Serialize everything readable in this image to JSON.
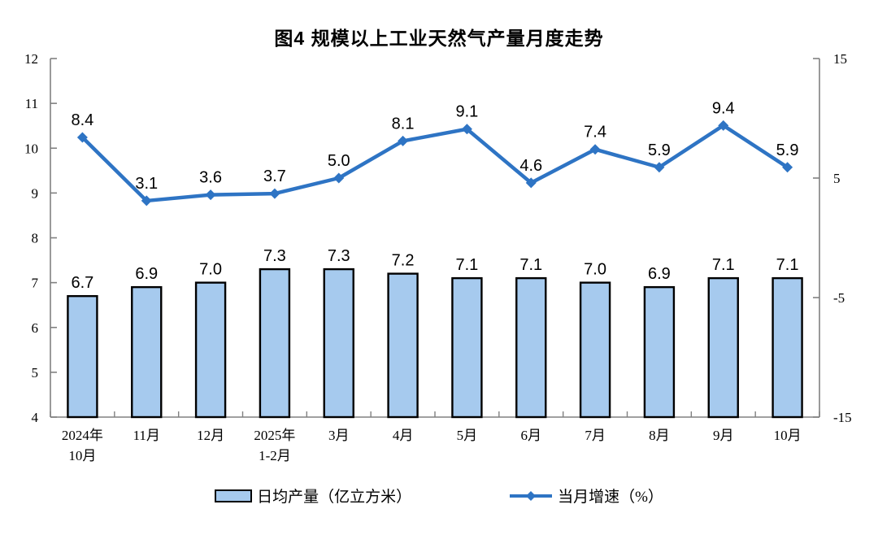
{
  "chart_data": {
    "type": "bar",
    "subtype": "combo-bar-line-dual-axis",
    "title": "图4 规模以上工业天然气产量月度走势",
    "categories": [
      "2024年\n10月",
      "11月",
      "12月",
      "2025年\n1-2月",
      "3月",
      "4月",
      "5月",
      "6月",
      "7月",
      "8月",
      "9月",
      "10月"
    ],
    "series": [
      {
        "name": "日均产量（亿立方米）",
        "type": "bar",
        "axis": "left",
        "values": [
          6.7,
          6.9,
          7.0,
          7.3,
          7.3,
          7.2,
          7.1,
          7.1,
          7.0,
          6.9,
          7.1,
          7.1
        ]
      },
      {
        "name": "当月增速（%）",
        "type": "line",
        "axis": "right",
        "values": [
          8.4,
          3.1,
          3.6,
          3.7,
          5.0,
          8.1,
          9.1,
          4.6,
          7.4,
          5.9,
          9.4,
          5.9
        ]
      }
    ],
    "left_axis": {
      "min": 4,
      "max": 12,
      "ticks": [
        4,
        5,
        6,
        7,
        8,
        9,
        10,
        11,
        12
      ]
    },
    "right_axis": {
      "min": -15,
      "max": 15,
      "ticks": [
        -15,
        -5,
        5,
        15
      ]
    },
    "colors": {
      "bar_fill": "#A6CAEE",
      "bar_border": "#000000",
      "line": "#2E74C4",
      "axis": "#808080"
    },
    "grid": false,
    "legend_position": "bottom",
    "xlabel": "",
    "ylabel": ""
  }
}
